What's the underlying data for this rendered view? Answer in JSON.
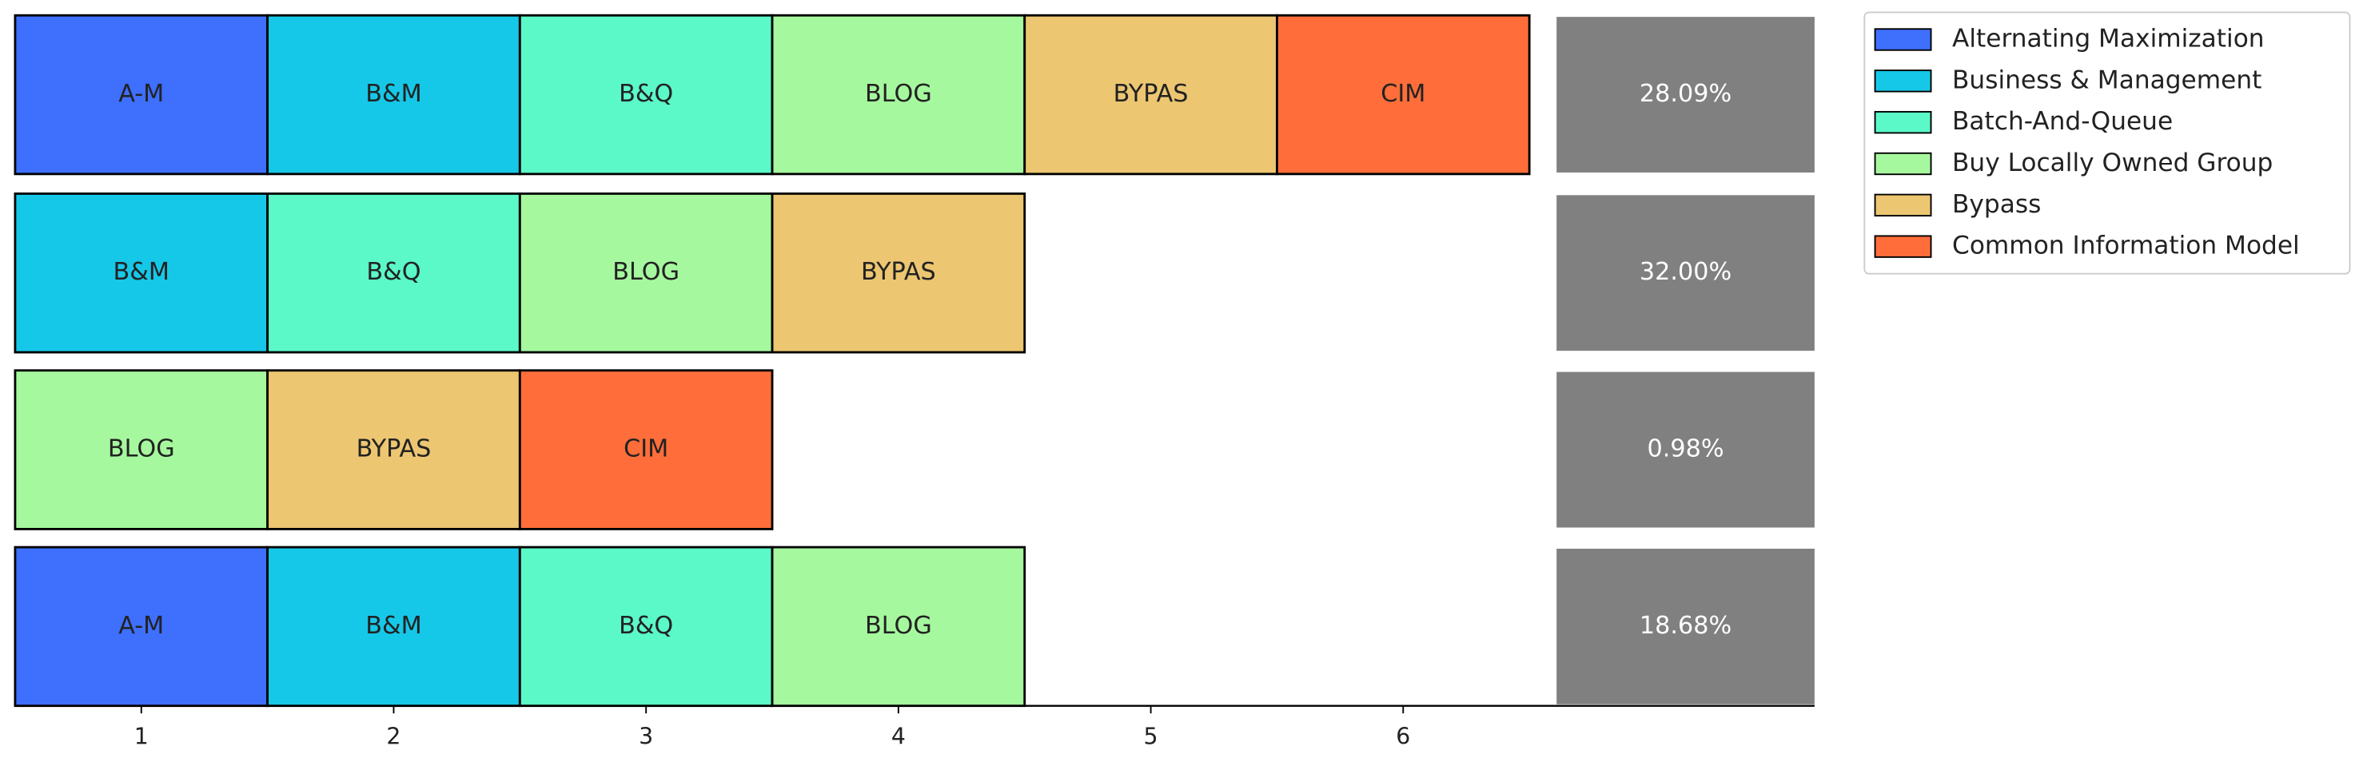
{
  "chart_data": {
    "type": "tile",
    "series": [
      {
        "name": "Alternating Maximization",
        "label": "A-M",
        "color": "#3e6ffd"
      },
      {
        "name": "Business & Management",
        "label": "B&M",
        "color": "#16c8e8"
      },
      {
        "name": "Batch-And-Queue",
        "label": "B&Q",
        "color": "#5bf8c8"
      },
      {
        "name": "Buy Locally Owned Group",
        "label": "BLOG",
        "color": "#a6f89e"
      },
      {
        "name": "Bypass",
        "label": "BYPAS",
        "color": "#ecc671"
      },
      {
        "name": "Common Information Model",
        "label": "CIM",
        "color": "#ff6e3a"
      }
    ],
    "rows": [
      [
        "A-M",
        "B&M",
        "B&Q",
        "BLOG",
        "BYPAS",
        "CIM"
      ],
      [
        "B&M",
        "B&Q",
        "BLOG",
        "BYPAS"
      ],
      [
        "BLOG",
        "BYPAS",
        "CIM"
      ],
      [
        "A-M",
        "B&M",
        "B&Q",
        "BLOG"
      ]
    ],
    "values": [
      28.09,
      32.0,
      0.98,
      18.68
    ],
    "value_labels": [
      "28.09%",
      "32.00%",
      "0.98%",
      "18.68%"
    ],
    "value_color": "#808080",
    "xlim": [
      0.5,
      7.63
    ],
    "xticks": [
      1,
      2,
      3,
      4,
      5,
      6
    ],
    "legend": "upper right"
  }
}
